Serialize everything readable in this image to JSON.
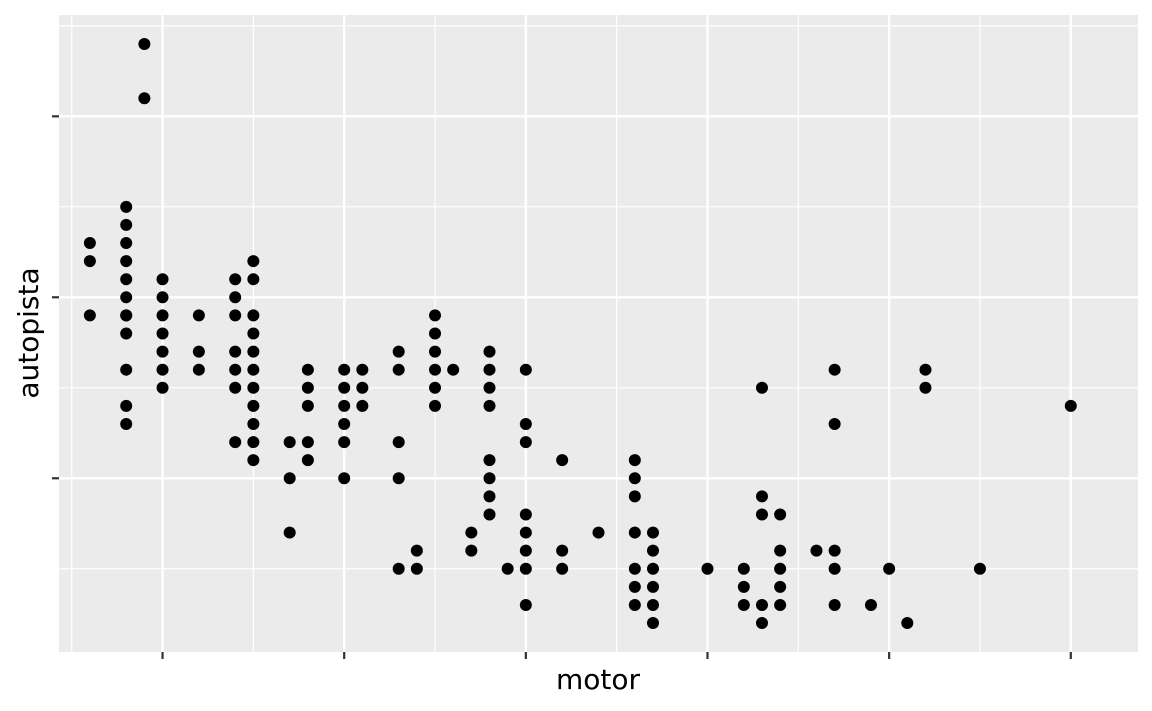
{
  "chart_data": {
    "type": "scatter",
    "xlabel": "motor",
    "ylabel": "autopista",
    "xlim": [
      1.43,
      7.37
    ],
    "ylim": [
      10.4,
      45.6
    ],
    "x_ticks": [
      2,
      3,
      4,
      5,
      6,
      7
    ],
    "y_ticks": [
      20,
      30,
      40
    ],
    "tick_labels_visible": false,
    "grid": true,
    "legend": "none",
    "colors": {
      "panel": "#EBEBEB",
      "grid": "#FFFFFF",
      "point": "#000000",
      "tick": "#333333"
    },
    "points": [
      [
        1.6,
        33
      ],
      [
        1.6,
        32
      ],
      [
        1.6,
        29
      ],
      [
        1.8,
        29
      ],
      [
        1.8,
        24
      ],
      [
        1.8,
        23
      ],
      [
        1.8,
        26
      ],
      [
        1.8,
        28
      ],
      [
        1.8,
        29
      ],
      [
        1.8,
        30
      ],
      [
        1.8,
        31
      ],
      [
        1.8,
        32
      ],
      [
        1.8,
        33
      ],
      [
        1.8,
        34
      ],
      [
        1.8,
        35
      ],
      [
        1.9,
        44
      ],
      [
        1.9,
        41
      ],
      [
        2.0,
        25
      ],
      [
        2.0,
        26
      ],
      [
        2.0,
        27
      ],
      [
        2.0,
        28
      ],
      [
        2.0,
        29
      ],
      [
        2.0,
        30
      ],
      [
        2.0,
        31
      ],
      [
        2.2,
        26
      ],
      [
        2.2,
        27
      ],
      [
        2.2,
        29
      ],
      [
        2.4,
        22
      ],
      [
        2.4,
        25
      ],
      [
        2.4,
        26
      ],
      [
        2.4,
        27
      ],
      [
        2.4,
        29
      ],
      [
        2.4,
        30
      ],
      [
        2.4,
        31
      ],
      [
        2.5,
        21
      ],
      [
        2.5,
        22
      ],
      [
        2.5,
        23
      ],
      [
        2.5,
        24
      ],
      [
        2.5,
        25
      ],
      [
        2.5,
        26
      ],
      [
        2.5,
        27
      ],
      [
        2.5,
        28
      ],
      [
        2.5,
        29
      ],
      [
        2.5,
        31
      ],
      [
        2.5,
        32
      ],
      [
        2.7,
        17
      ],
      [
        2.7,
        20
      ],
      [
        2.7,
        22
      ],
      [
        2.8,
        21
      ],
      [
        2.8,
        22
      ],
      [
        2.8,
        24
      ],
      [
        2.8,
        25
      ],
      [
        2.8,
        26
      ],
      [
        3.0,
        20
      ],
      [
        3.0,
        22
      ],
      [
        3.0,
        23
      ],
      [
        3.0,
        24
      ],
      [
        3.0,
        25
      ],
      [
        3.0,
        26
      ],
      [
        3.1,
        24
      ],
      [
        3.1,
        25
      ],
      [
        3.1,
        26
      ],
      [
        3.3,
        15
      ],
      [
        3.3,
        20
      ],
      [
        3.3,
        22
      ],
      [
        3.3,
        26
      ],
      [
        3.3,
        27
      ],
      [
        3.4,
        15
      ],
      [
        3.4,
        16
      ],
      [
        3.5,
        24
      ],
      [
        3.5,
        25
      ],
      [
        3.5,
        26
      ],
      [
        3.5,
        27
      ],
      [
        3.5,
        28
      ],
      [
        3.5,
        29
      ],
      [
        3.6,
        26
      ],
      [
        3.7,
        16
      ],
      [
        3.7,
        17
      ],
      [
        3.8,
        18
      ],
      [
        3.8,
        19
      ],
      [
        3.8,
        20
      ],
      [
        3.8,
        21
      ],
      [
        3.8,
        24
      ],
      [
        3.8,
        25
      ],
      [
        3.8,
        26
      ],
      [
        3.8,
        27
      ],
      [
        3.9,
        15
      ],
      [
        4.0,
        13
      ],
      [
        4.0,
        15
      ],
      [
        4.0,
        16
      ],
      [
        4.0,
        17
      ],
      [
        4.0,
        18
      ],
      [
        4.0,
        22
      ],
      [
        4.0,
        23
      ],
      [
        4.0,
        26
      ],
      [
        4.2,
        16
      ],
      [
        4.2,
        15
      ],
      [
        4.2,
        21
      ],
      [
        4.4,
        17
      ],
      [
        4.6,
        21
      ],
      [
        4.6,
        20
      ],
      [
        4.6,
        19
      ],
      [
        4.6,
        17
      ],
      [
        4.6,
        15
      ],
      [
        4.6,
        14
      ],
      [
        4.6,
        13
      ],
      [
        4.7,
        17
      ],
      [
        4.7,
        16
      ],
      [
        4.7,
        15
      ],
      [
        4.7,
        14
      ],
      [
        4.7,
        13
      ],
      [
        4.7,
        12
      ],
      [
        5.0,
        15
      ],
      [
        5.2,
        15
      ],
      [
        5.2,
        14
      ],
      [
        5.2,
        13
      ],
      [
        5.3,
        25
      ],
      [
        5.3,
        19
      ],
      [
        5.3,
        18
      ],
      [
        5.3,
        13
      ],
      [
        5.3,
        12
      ],
      [
        5.4,
        18
      ],
      [
        5.4,
        16
      ],
      [
        5.4,
        15
      ],
      [
        5.4,
        14
      ],
      [
        5.4,
        13
      ],
      [
        5.6,
        16
      ],
      [
        5.7,
        26
      ],
      [
        5.7,
        23
      ],
      [
        5.7,
        16
      ],
      [
        5.7,
        15
      ],
      [
        5.7,
        13
      ],
      [
        5.9,
        13
      ],
      [
        6.0,
        15
      ],
      [
        6.1,
        12
      ],
      [
        6.2,
        26
      ],
      [
        6.2,
        25
      ],
      [
        6.5,
        15
      ],
      [
        7.0,
        24
      ]
    ]
  }
}
